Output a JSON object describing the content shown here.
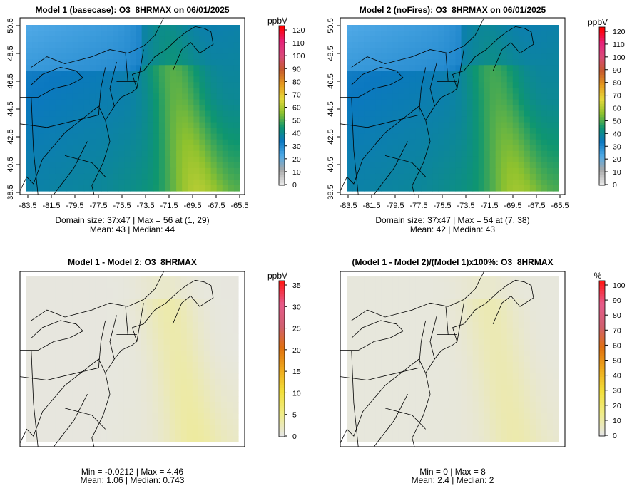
{
  "panels": [
    {
      "title": "Model 1 (basecase): O3_8HRMAX on 06/01/2025",
      "xticks": [
        "-83.5",
        "-81.5",
        "-79.5",
        "-77.5",
        "-75.5",
        "-73.5",
        "-71.5",
        "-69.5",
        "-67.5",
        "-65.5"
      ],
      "yticks": [
        "38.5",
        "40.5",
        "42.5",
        "44.5",
        "46.5",
        "48.5",
        "50.5"
      ],
      "colorbar_unit": "ppbV",
      "colorbar_ticks": [
        "0",
        "10",
        "20",
        "30",
        "40",
        "50",
        "60",
        "70",
        "80",
        "90",
        "100",
        "110",
        "120"
      ],
      "colorbar_max": 120,
      "stats_line1": "Domain size: 37x47 | Max = 56 at (1, 29)",
      "stats_line2": "Mean: 43 |  Median: 44",
      "field": "m1"
    },
    {
      "title": "Model 2 (noFires): O3_8HRMAX on 06/01/2025",
      "xticks": [
        "-83.5",
        "-81.5",
        "-79.5",
        "-77.5",
        "-75.5",
        "-73.5",
        "-71.5",
        "-69.5",
        "-67.5",
        "-65.5"
      ],
      "yticks": [
        "38.5",
        "40.5",
        "42.5",
        "44.5",
        "46.5",
        "48.5",
        "50.5"
      ],
      "colorbar_unit": "ppbV",
      "colorbar_ticks": [
        "0",
        "10",
        "20",
        "30",
        "40",
        "50",
        "60",
        "70",
        "80",
        "90",
        "100",
        "110",
        "120"
      ],
      "colorbar_max": 120,
      "stats_line1": "Domain size: 37x47 | Max = 54 at (7, 38)",
      "stats_line2": "Mean: 42 |  Median: 43",
      "field": "m2"
    },
    {
      "title": "Model 1 - Model 2: O3_8HRMAX",
      "xticks": [],
      "yticks": [],
      "colorbar_unit": "ppbV",
      "colorbar_ticks": [
        "0",
        "5",
        "10",
        "15",
        "20",
        "25",
        "30",
        "35"
      ],
      "colorbar_max": 35,
      "stats_line1": "Min = -0.0212 | Max = 4.46",
      "stats_line2": "Mean: 1.06 |  Median: 0.743",
      "field": "diff"
    },
    {
      "title": "(Model 1 - Model 2)/(Model 1)x100%: O3_8HRMAX",
      "xticks": [],
      "yticks": [],
      "colorbar_unit": "%",
      "colorbar_ticks": [
        "0",
        "10",
        "20",
        "30",
        "40",
        "50",
        "60",
        "70",
        "80",
        "90",
        "100"
      ],
      "colorbar_max": 100,
      "stats_line1": "Min = 0 | Max = 8",
      "stats_line2": "Mean: 2.4 |  Median: 2",
      "field": "pct"
    }
  ],
  "colors": {
    "ramp": [
      "#e6e6e6",
      "#a8a8a8",
      "#4fa9e6",
      "#0b78c0",
      "#0e9670",
      "#8fc22e",
      "#e6d83a",
      "#e69a1e",
      "#c65a2e",
      "#d94a7a",
      "#e6217a",
      "#ff0000"
    ],
    "diffRamp": [
      "#e6e6e6",
      "#f0ec86",
      "#f2df3a",
      "#eeaa1c",
      "#e07010",
      "#d06070",
      "#e65a8a",
      "#ff1a1a"
    ]
  }
}
